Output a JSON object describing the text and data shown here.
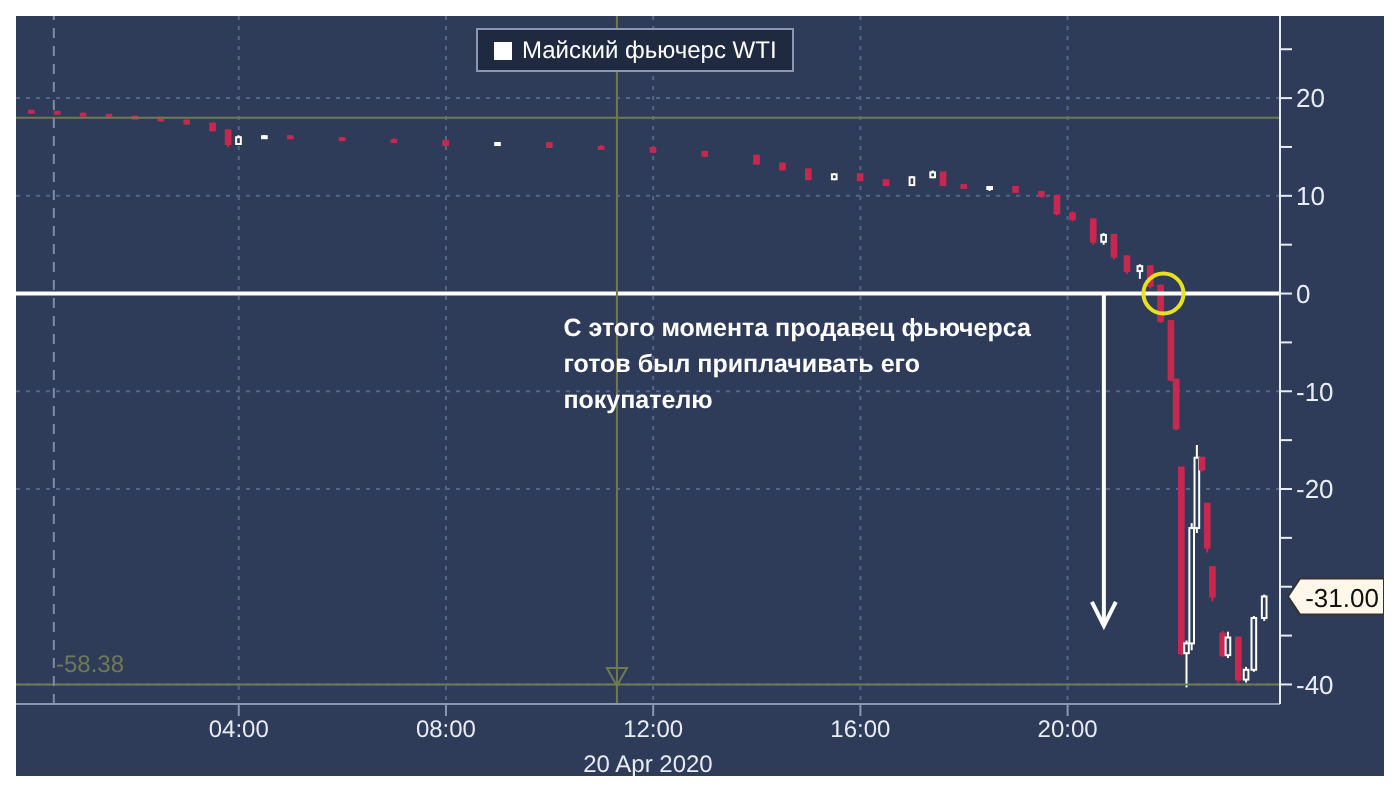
{
  "chart_data": {
    "type": "candlestick",
    "xlabel": "20 Apr 2020",
    "x": [
      0,
      0.5,
      1,
      1.5,
      2,
      2.5,
      3,
      3.5,
      3.8,
      4,
      4.5,
      5,
      6,
      7,
      8,
      9,
      10,
      11,
      12,
      13,
      14,
      14.5,
      15,
      15.5,
      16,
      16.5,
      17,
      17.4,
      17.6,
      18,
      18.5,
      19,
      19.5,
      19.8,
      20.1,
      20.5,
      20.7,
      20.9,
      21.15,
      21.4,
      21.6,
      21.8,
      22,
      22.1,
      22.2,
      22.3,
      22.4,
      22.5,
      22.6,
      22.7,
      22.8,
      23,
      23.1,
      23.3,
      23.45,
      23.6,
      23.8
    ],
    "series": [
      {
        "name": "Майский фьючерс WTI",
        "color": "#ffffff",
        "ohlc": [
          [
            18.7,
            18.8,
            18.5,
            18.6
          ],
          [
            18.6,
            18.6,
            18.3,
            18.4
          ],
          [
            18.4,
            18.5,
            18.2,
            18.3
          ],
          [
            18.3,
            18.3,
            18.0,
            18.1
          ],
          [
            18.1,
            18.2,
            17.9,
            18.0
          ],
          [
            18.0,
            18.0,
            17.6,
            17.7
          ],
          [
            17.7,
            17.8,
            17.3,
            17.4
          ],
          [
            17.4,
            17.4,
            16.6,
            16.7
          ],
          [
            16.7,
            16.8,
            15.0,
            15.3
          ],
          [
            15.3,
            16.2,
            15.2,
            16.0
          ],
          [
            16.0,
            16.2,
            15.9,
            16.1
          ],
          [
            16.1,
            16.1,
            15.8,
            15.9
          ],
          [
            15.9,
            16.0,
            15.6,
            15.7
          ],
          [
            15.7,
            15.9,
            15.5,
            15.6
          ],
          [
            15.6,
            15.7,
            15.1,
            15.2
          ],
          [
            15.2,
            15.5,
            15.1,
            15.4
          ],
          [
            15.4,
            15.4,
            14.9,
            15.0
          ],
          [
            15.0,
            15.2,
            14.8,
            14.9
          ],
          [
            14.9,
            15.0,
            14.4,
            14.5
          ],
          [
            14.5,
            14.6,
            14.0,
            14.1
          ],
          [
            14.1,
            14.2,
            13.2,
            13.3
          ],
          [
            13.3,
            13.4,
            12.6,
            12.7
          ],
          [
            12.7,
            12.8,
            11.6,
            11.7
          ],
          [
            11.7,
            12.3,
            11.6,
            12.2
          ],
          [
            12.2,
            12.2,
            11.5,
            11.6
          ],
          [
            11.6,
            11.7,
            11.0,
            11.1
          ],
          [
            11.1,
            12.0,
            11.0,
            11.9
          ],
          [
            11.9,
            12.6,
            11.8,
            12.4
          ],
          [
            12.4,
            12.4,
            11.0,
            11.1
          ],
          [
            11.1,
            11.2,
            10.7,
            10.8
          ],
          [
            10.8,
            11.0,
            10.5,
            10.9
          ],
          [
            10.9,
            11.0,
            10.3,
            10.4
          ],
          [
            10.4,
            10.5,
            9.8,
            10.0
          ],
          [
            10.0,
            10.0,
            8.0,
            8.2
          ],
          [
            8.2,
            8.4,
            7.4,
            7.6
          ],
          [
            7.6,
            7.6,
            5.0,
            5.3
          ],
          [
            5.3,
            6.2,
            5.0,
            6.0
          ],
          [
            6.0,
            6.0,
            3.5,
            3.8
          ],
          [
            3.8,
            3.9,
            2.0,
            2.3
          ],
          [
            2.3,
            3.0,
            1.5,
            2.8
          ],
          [
            2.8,
            2.8,
            0.5,
            0.8
          ],
          [
            0.8,
            0.9,
            -3.0,
            -2.8
          ],
          [
            -2.8,
            -2.8,
            -9.0,
            -8.8
          ],
          [
            -8.8,
            -8.8,
            -14.0,
            -13.8
          ],
          [
            -17.8,
            -17.8,
            -37.0,
            -36.8
          ],
          [
            -36.8,
            -35.5,
            -40.3,
            -35.8
          ],
          [
            -35.8,
            -23.5,
            -36.5,
            -24.0
          ],
          [
            -24.0,
            -15.5,
            -24.5,
            -16.8
          ],
          [
            -16.8,
            -16.8,
            -18.2,
            -18.0
          ],
          [
            -21.5,
            -21.5,
            -26.5,
            -26.0
          ],
          [
            -28.0,
            -28.0,
            -31.5,
            -31.0
          ],
          [
            -34.8,
            -34.5,
            -37.2,
            -37.0
          ],
          [
            -37.0,
            -34.6,
            -37.3,
            -35.2
          ],
          [
            -35.2,
            -35.2,
            -39.8,
            -39.5
          ],
          [
            -39.5,
            -38.2,
            -39.8,
            -38.5
          ],
          [
            -38.5,
            -33.0,
            -38.7,
            -33.2
          ],
          [
            -33.2,
            -30.8,
            -33.5,
            -31.0
          ]
        ],
        "colors": [
          "#c8284f",
          "#c8284f",
          "#c8284f",
          "#c8284f",
          "#c8284f",
          "#c8284f",
          "#c8284f",
          "#c8284f",
          "#c8284f",
          "#ffffff",
          "#ffffff",
          "#c8284f",
          "#c8284f",
          "#c8284f",
          "#c8284f",
          "#ffffff",
          "#c8284f",
          "#c8284f",
          "#c8284f",
          "#c8284f",
          "#c8284f",
          "#c8284f",
          "#c8284f",
          "#ffffff",
          "#c8284f",
          "#c8284f",
          "#ffffff",
          "#ffffff",
          "#c8284f",
          "#c8284f",
          "#ffffff",
          "#c8284f",
          "#c8284f",
          "#c8284f",
          "#c8284f",
          "#c8284f",
          "#ffffff",
          "#c8284f",
          "#c8284f",
          "#ffffff",
          "#c8284f",
          "#c8284f",
          "#c8284f",
          "#c8284f",
          "#c8284f",
          "#ffffff",
          "#ffffff",
          "#ffffff",
          "#c8284f",
          "#c8284f",
          "#c8284f",
          "#c8284f",
          "#ffffff",
          "#c8284f",
          "#ffffff",
          "#ffffff",
          "#ffffff"
        ]
      }
    ],
    "xlim": [
      -0.3,
      24.1
    ],
    "xticks": [
      {
        "value": 4,
        "label": "04:00"
      },
      {
        "value": 8,
        "label": "08:00"
      },
      {
        "value": 12,
        "label": "12:00"
      },
      {
        "value": 16,
        "label": "16:00"
      },
      {
        "value": 20,
        "label": "20:00"
      }
    ],
    "ylim": [
      -42,
      28.4
    ],
    "yticks": [
      -40,
      {
        "value": -35,
        "label": null
      },
      {
        "value": -30,
        "label": null
      },
      {
        "value": -25,
        "label": null
      },
      -20,
      {
        "value": -15,
        "label": null
      },
      -10,
      {
        "value": -5,
        "label": null
      },
      0,
      {
        "value": 5,
        "label": null
      },
      10,
      {
        "value": 15,
        "label": null
      },
      20,
      {
        "value": 25,
        "label": null
      }
    ],
    "grid": true,
    "legend": "top",
    "ref_lines": [
      {
        "axis": "y",
        "value": 0,
        "color": "#ffffff",
        "line_style": "solid"
      },
      {
        "axis": "y",
        "value": 18,
        "color": "#6f7a55",
        "line_style": "solid"
      },
      {
        "axis": "y",
        "value": -40,
        "color": "#6f7a55",
        "line_style": "solid"
      },
      {
        "axis": "x",
        "value": 11.3,
        "color": "#6f7a55",
        "line_style": "solid"
      },
      {
        "axis": "x",
        "value": 0.43,
        "color": "#7f8ba8",
        "line_style": "dashed"
      }
    ],
    "annotations": [
      "С этого момента продавец фьючерса готов был приплачивать его покупателю",
      "-31.00",
      "-58.38"
    ]
  }
}
